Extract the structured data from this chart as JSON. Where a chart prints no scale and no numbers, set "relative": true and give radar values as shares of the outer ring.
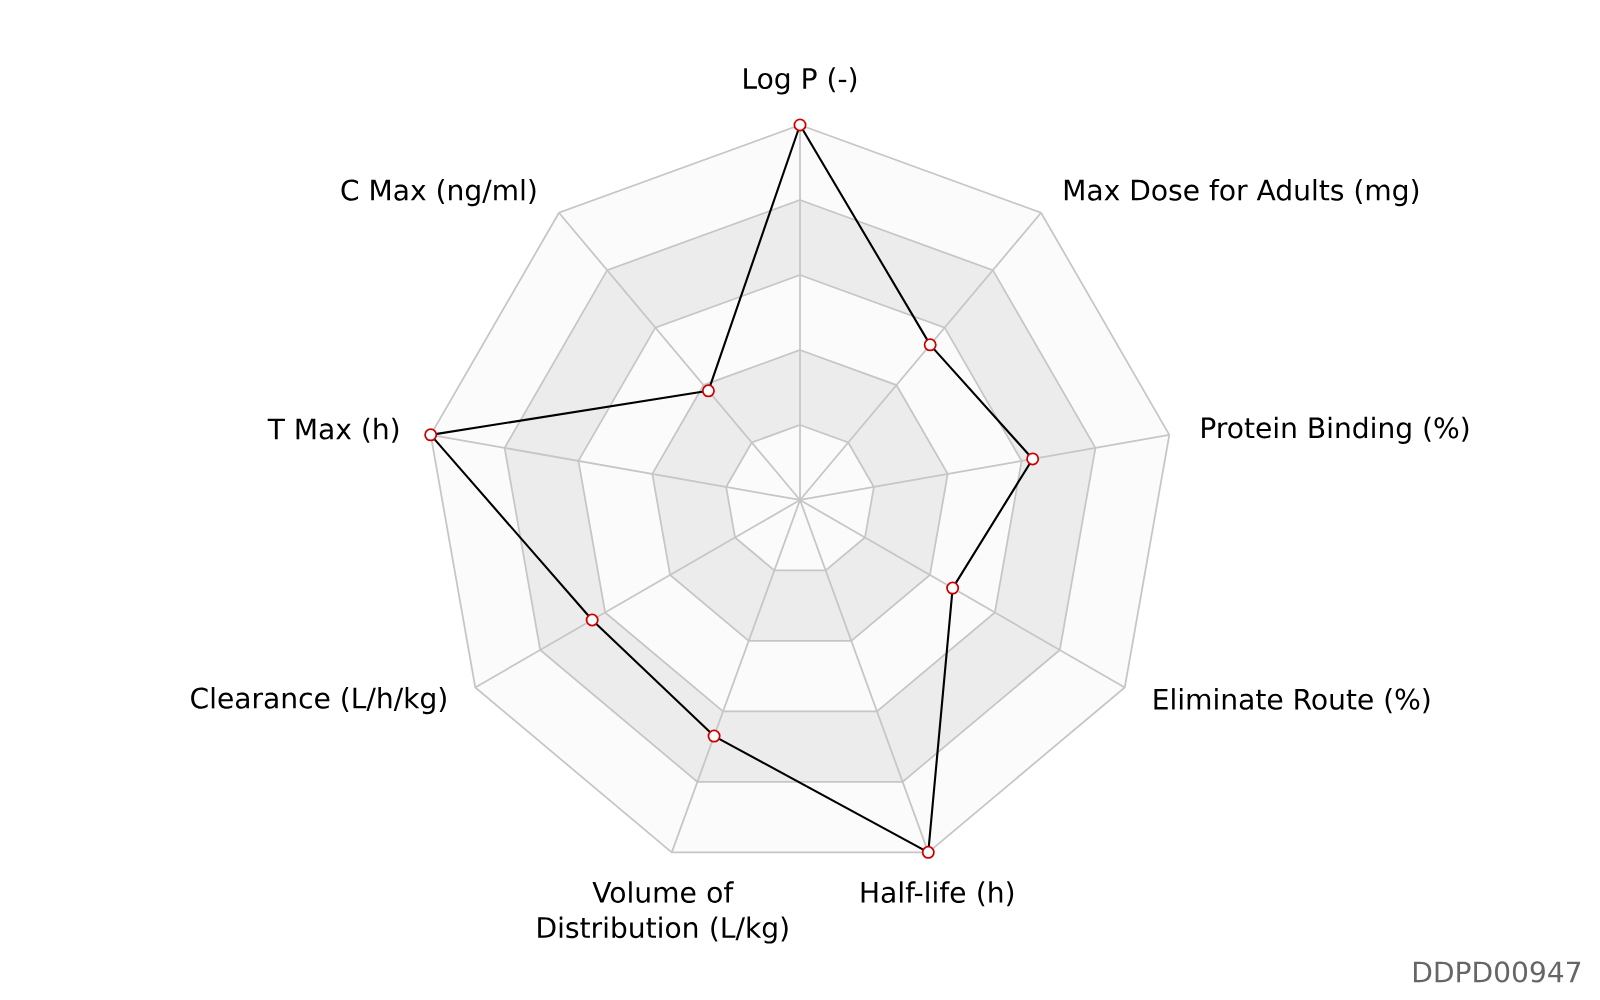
{
  "chart_data": {
    "type": "radar",
    "relative": true,
    "grid": true,
    "marker": "circle",
    "categories": [
      "Log P (-)",
      "Max Dose for Adults (mg)",
      "Protein Binding (%)",
      "Eliminate Route (%)",
      "Half-life (h)",
      "Volume of Distribution (L/kg)",
      "Clearance (L/h/kg)",
      "T Max (h)",
      "C Max (ng/ml)"
    ],
    "series": [
      {
        "color": "#000000",
        "values": [
          1.0,
          0.54,
          0.63,
          0.47,
          1.0,
          0.67,
          0.64,
          1.0,
          0.38
        ]
      }
    ],
    "annotations": [
      "DDPD00947"
    ]
  }
}
